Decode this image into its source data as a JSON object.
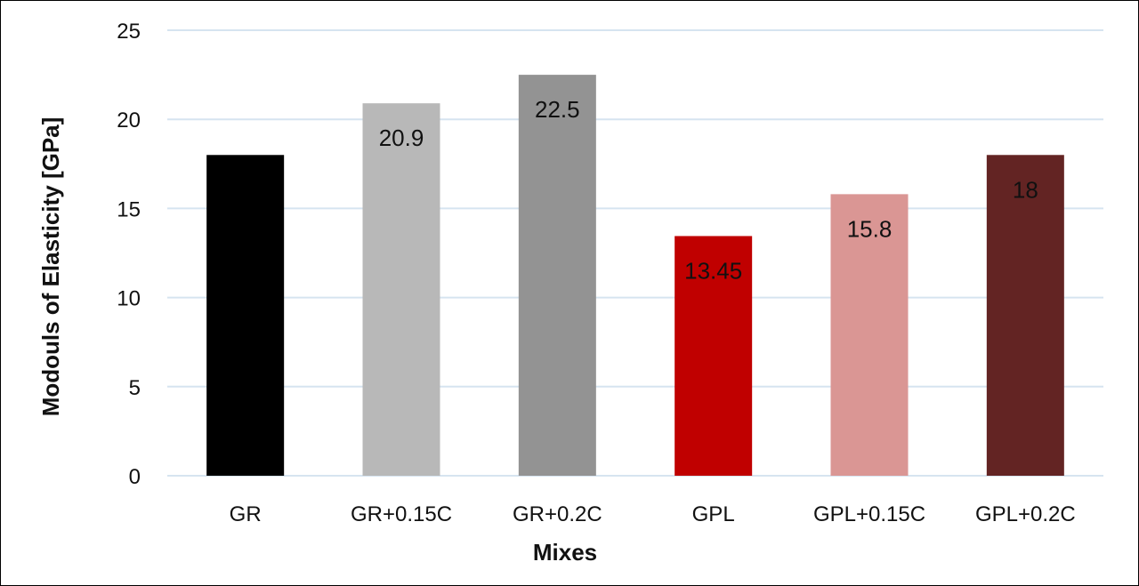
{
  "chart_data": {
    "type": "bar",
    "xlabel": "Mixes",
    "ylabel": "Modouls of Elasticity [GPa]",
    "categories": [
      "GR",
      "GR+0.15C",
      "GR+0.2C",
      "GPL",
      "GPL+0.15C",
      "GPL+0.2C"
    ],
    "values": [
      18,
      20.9,
      22.5,
      13.45,
      15.8,
      18
    ],
    "data_labels": [
      "",
      "20.9",
      "22.5",
      "13.45",
      "15.8",
      "18"
    ],
    "colors": [
      "#000000",
      "#b8b8b8",
      "#939393",
      "#c00000",
      "#da9694",
      "#632423"
    ],
    "ylim": [
      0,
      25
    ],
    "yticks": [
      "0",
      "5",
      "10",
      "15",
      "20",
      "25"
    ],
    "ytick_values": [
      0,
      5,
      10,
      15,
      20,
      25
    ],
    "grid": true,
    "gridline_color": "#d6e4f0",
    "legend": "none"
  }
}
